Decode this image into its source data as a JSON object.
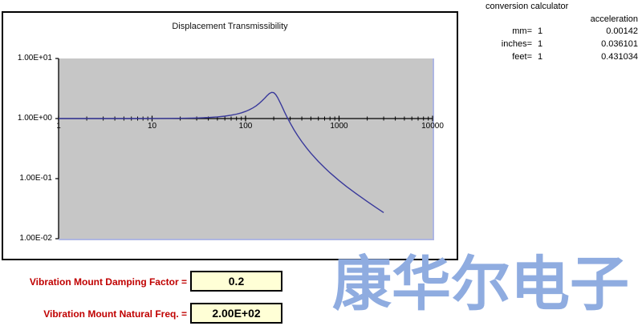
{
  "chart_data": {
    "type": "line",
    "title": "Displacement Transmissibility",
    "xlabel": "",
    "ylabel": "",
    "x_scale": "log",
    "y_scale": "log",
    "xlim": [
      1,
      10000
    ],
    "ylim": [
      0.01,
      10
    ],
    "grid": false,
    "legend_visible": false,
    "x_ticks": [
      "1",
      "10",
      "100",
      "1000",
      "10000"
    ],
    "y_ticks": [
      "1.00E+01",
      "1.00E+00",
      "1.00E-01",
      "1.00E-02"
    ],
    "plot_background": "#C6C6C6",
    "series": [
      {
        "name": "Displacement Transmissibility",
        "color": "#39399B",
        "points": [
          [
            1,
            1.0
          ],
          [
            2,
            1.0
          ],
          [
            3,
            1.0002
          ],
          [
            5,
            1.0006
          ],
          [
            7,
            1.0012
          ],
          [
            10,
            1.0025
          ],
          [
            15,
            1.0057
          ],
          [
            20,
            1.0101
          ],
          [
            30,
            1.0229
          ],
          [
            40,
            1.0414
          ],
          [
            50,
            1.066
          ],
          [
            60,
            1.0973
          ],
          [
            70,
            1.1363
          ],
          [
            80,
            1.1843
          ],
          [
            90,
            1.2428
          ],
          [
            100,
            1.3138
          ],
          [
            110,
            1.4
          ],
          [
            120,
            1.5046
          ],
          [
            130,
            1.6314
          ],
          [
            140,
            1.7849
          ],
          [
            150,
            1.968
          ],
          [
            160,
            2.1799
          ],
          [
            170,
            2.4067
          ],
          [
            180,
            2.611
          ],
          [
            190,
            2.727
          ],
          [
            200,
            2.6926
          ],
          [
            210,
            2.509
          ],
          [
            220,
            2.2409
          ],
          [
            230,
            1.9593
          ],
          [
            240,
            1.7035
          ],
          [
            250,
            1.4856
          ],
          [
            260,
            1.3045
          ],
          [
            280,
            1.0312
          ],
          [
            300,
            0.8411
          ],
          [
            330,
            0.6495
          ],
          [
            360,
            0.5237
          ],
          [
            400,
            0.4124
          ],
          [
            450,
            0.3233
          ],
          [
            500,
            0.2646
          ],
          [
            600,
            0.1931
          ],
          [
            700,
            0.1518
          ],
          [
            800,
            0.1251
          ],
          [
            1000,
            0.0928
          ],
          [
            1200,
            0.0741
          ],
          [
            1500,
            0.0572
          ],
          [
            2000,
            0.0416
          ],
          [
            2500,
            0.0328
          ],
          [
            3000,
            0.0272
          ]
        ]
      }
    ]
  },
  "calculator": {
    "title": "conversion calculator",
    "column_header": "acceleration",
    "rows": [
      {
        "label": "mm=",
        "value": "1",
        "acceleration": "0.00142"
      },
      {
        "label": "inches=",
        "value": "1",
        "acceleration": "0.036101"
      },
      {
        "label": "feet=",
        "value": "1",
        "acceleration": "0.431034"
      }
    ]
  },
  "inputs": {
    "damping": {
      "label": "Vibration Mount Damping Factor =",
      "value": "0.2"
    },
    "natural_freq": {
      "label": "Vibration Mount Natural Freq. =",
      "value": "2.00E+02"
    }
  },
  "watermark": {
    "text": "康华尔电子",
    "color": "#8FACE0"
  },
  "colors": {
    "label_red": "#C00000",
    "input_fill": "#FFFFD6",
    "plot_background": "#C6C6C6",
    "curve": "#39399B",
    "plot_edge": "#AEB6E2",
    "watermark": "#8FACE0"
  }
}
